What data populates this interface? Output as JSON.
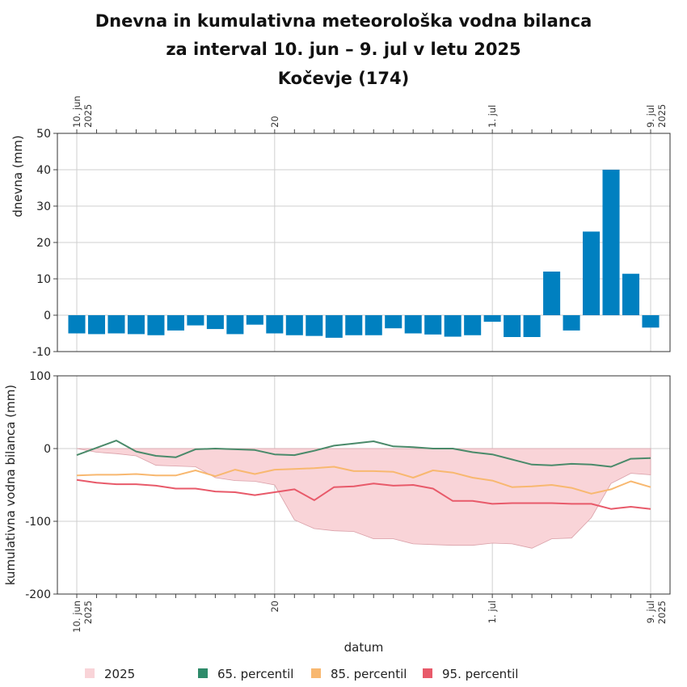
{
  "title_lines": [
    "Dnevna in kumulativna meteorološka vodna bilanca",
    "za interval 10. jun – 9. jul v letu 2025",
    "Kočevje (174)"
  ],
  "colors": {
    "bar": "#0080c0",
    "fill_2025": "#f9d4d8",
    "fill_2025_edge": "#d9a0a8",
    "p65": "#4a8a6a",
    "p85": "#f8b870",
    "p95": "#e85a6a",
    "grid": "#cfcfcf"
  },
  "chart_data": [
    {
      "type": "bar",
      "ylabel": "dnevna (mm)",
      "ylim": [
        -10,
        50
      ],
      "yticks": [
        -10,
        0,
        10,
        20,
        30,
        40,
        50
      ],
      "x": [
        "2025-06-10",
        "2025-06-11",
        "2025-06-12",
        "2025-06-13",
        "2025-06-14",
        "2025-06-15",
        "2025-06-16",
        "2025-06-17",
        "2025-06-18",
        "2025-06-19",
        "2025-06-20",
        "2025-06-21",
        "2025-06-22",
        "2025-06-23",
        "2025-06-24",
        "2025-06-25",
        "2025-06-26",
        "2025-06-27",
        "2025-06-28",
        "2025-06-29",
        "2025-06-30",
        "2025-07-01",
        "2025-07-02",
        "2025-07-03",
        "2025-07-04",
        "2025-07-05",
        "2025-07-06",
        "2025-07-07",
        "2025-07-08",
        "2025-07-09"
      ],
      "values": [
        -5.0,
        -5.2,
        -5.0,
        -5.2,
        -5.5,
        -4.2,
        -2.8,
        -3.8,
        -5.2,
        -2.6,
        -5.0,
        -5.5,
        -5.7,
        -6.2,
        -5.5,
        -5.5,
        -3.6,
        -5.0,
        -5.3,
        -5.9,
        -5.5,
        -1.8,
        -6.0,
        -6.0,
        12.0,
        -4.2,
        23.0,
        40.0,
        11.4,
        -3.4
      ],
      "top_tick_labels": [
        {
          "date": "2025-06-10",
          "lines": [
            "10. jun",
            "2025"
          ]
        },
        {
          "date": "2025-06-20",
          "lines": [
            "20"
          ]
        },
        {
          "date": "2025-07-01",
          "lines": [
            "1. jul"
          ]
        },
        {
          "date": "2025-07-09",
          "lines": [
            "9. jul",
            "2025"
          ]
        }
      ]
    },
    {
      "type": "area",
      "ylabel": "kumulativna vodna bilanca (mm)",
      "xlabel": "datum",
      "ylim": [
        -200,
        100
      ],
      "yticks": [
        -200,
        -100,
        0,
        100
      ],
      "x": [
        "2025-06-10",
        "2025-06-11",
        "2025-06-12",
        "2025-06-13",
        "2025-06-14",
        "2025-06-15",
        "2025-06-16",
        "2025-06-17",
        "2025-06-18",
        "2025-06-19",
        "2025-06-20",
        "2025-06-21",
        "2025-06-22",
        "2025-06-23",
        "2025-06-24",
        "2025-06-25",
        "2025-06-26",
        "2025-06-27",
        "2025-06-28",
        "2025-06-29",
        "2025-06-30",
        "2025-07-01",
        "2025-07-02",
        "2025-07-03",
        "2025-07-04",
        "2025-07-05",
        "2025-07-06",
        "2025-07-07",
        "2025-07-08",
        "2025-07-09"
      ],
      "bottom_tick_labels": [
        {
          "date": "2025-06-10",
          "lines": [
            "10. jun",
            "2025"
          ]
        },
        {
          "date": "2025-06-20",
          "lines": [
            "20"
          ]
        },
        {
          "date": "2025-07-01",
          "lines": [
            "1. jul"
          ]
        },
        {
          "date": "2025-07-09",
          "lines": [
            "9. jul",
            "2025"
          ]
        }
      ],
      "series": [
        {
          "name": "2025",
          "kind": "fill",
          "values": [
            0,
            -5,
            -7,
            -10,
            -23,
            -24,
            -25,
            -40,
            -44,
            -45,
            -50,
            -98,
            -110,
            -113,
            -114,
            -124,
            -124,
            -131,
            -132,
            -133,
            -133,
            -130,
            -131,
            -137,
            -124,
            -123,
            -95,
            -48,
            -34,
            -36
          ]
        },
        {
          "name": "65. percentil",
          "kind": "line",
          "values": [
            -9,
            1,
            11,
            -4,
            -10,
            -12,
            -1,
            0,
            -1,
            -2,
            -8,
            -9,
            -3,
            4,
            7,
            10,
            3,
            2,
            0,
            0,
            -5,
            -8,
            -15,
            -22,
            -23,
            -21,
            -22,
            -25,
            -14,
            -13
          ]
        },
        {
          "name": "85. percentil",
          "kind": "line",
          "values": [
            -37,
            -36,
            -36,
            -35,
            -37,
            -37,
            -30,
            -38,
            -29,
            -35,
            -29,
            -28,
            -27,
            -25,
            -31,
            -31,
            -32,
            -40,
            -30,
            -33,
            -40,
            -44,
            -53,
            -52,
            -50,
            -54,
            -62,
            -56,
            -45,
            -53
          ]
        },
        {
          "name": "95. percentil",
          "kind": "line",
          "values": [
            -43,
            -47,
            -49,
            -49,
            -51,
            -55,
            -55,
            -59,
            -60,
            -64,
            -60,
            -56,
            -71,
            -53,
            -52,
            -48,
            -51,
            -50,
            -55,
            -72,
            -72,
            -76,
            -75,
            -75,
            -75,
            -76,
            -76,
            -83,
            -80,
            -83
          ]
        }
      ]
    }
  ],
  "legend": [
    {
      "label": "2025",
      "color": "#f9d4d8"
    },
    {
      "label": "65. percentil",
      "color": "#2e8b6a"
    },
    {
      "label": "85. percentil",
      "color": "#f8b870"
    },
    {
      "label": "95. percentil",
      "color": "#e85a6a"
    }
  ]
}
